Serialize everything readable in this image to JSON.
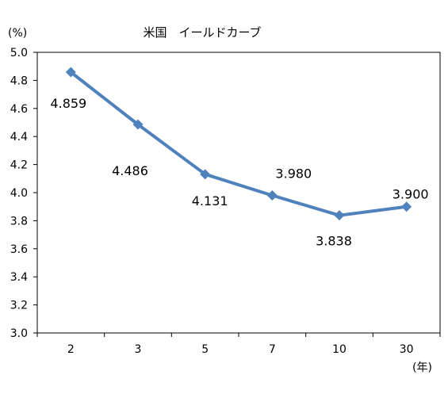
{
  "chart_data": {
    "type": "line",
    "title": "米国　イールドカーブ",
    "ylabel": "(%)",
    "xlabel": "(年)",
    "categories": [
      "2",
      "3",
      "5",
      "7",
      "10",
      "30"
    ],
    "series": [
      {
        "values": [
          4.859,
          4.486,
          4.131,
          3.98,
          3.838,
          3.9
        ],
        "labels": [
          "4.859",
          "4.486",
          "4.131",
          "3.980",
          "3.838",
          "3.900"
        ]
      }
    ],
    "ylim": [
      3.0,
      5.0
    ],
    "yticks": [
      "3.0",
      "3.2",
      "3.4",
      "3.6",
      "3.8",
      "4.0",
      "4.2",
      "4.4",
      "4.6",
      "4.8",
      "5.0"
    ],
    "grid": false,
    "legend": "none",
    "colors": {
      "series": "#4f81bd",
      "axis": "#000000"
    }
  }
}
